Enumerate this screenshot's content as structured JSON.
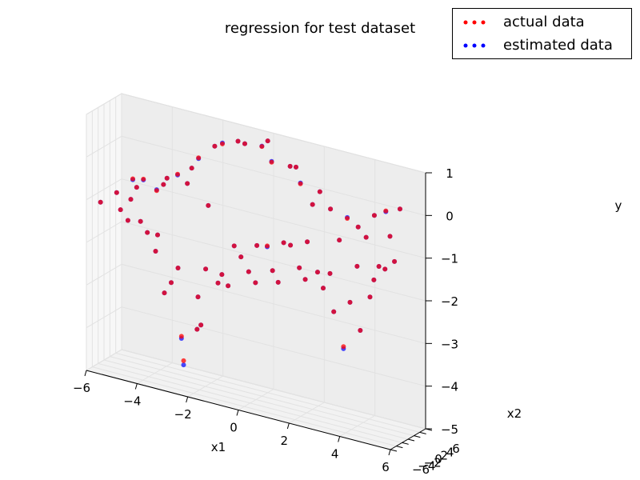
{
  "chart_data": {
    "type": "scatter",
    "projection": "3d",
    "title": "regression for test dataset",
    "xlabel": "x1",
    "ylabel": "x2",
    "zlabel": "y",
    "xlim": [
      -6,
      6
    ],
    "ylim": [
      -6,
      6
    ],
    "zlim": [
      -5,
      1
    ],
    "xticks": [
      "−6",
      "−4",
      "−2",
      "0",
      "2",
      "4",
      "6"
    ],
    "yticks": [
      "−6",
      "−4",
      "−2",
      "0",
      "2",
      "4",
      "6"
    ],
    "zticks": [
      "−5",
      "−4",
      "−3",
      "−2",
      "−1",
      "0",
      "1"
    ],
    "grid": true,
    "legend": "top-right",
    "series": [
      {
        "name": "actual data",
        "color": "#ff0000",
        "marker": "o"
      },
      {
        "name": "estimated data",
        "color": "#0000ff",
        "marker": "o"
      }
    ],
    "points": [
      {
        "x1": -5.5,
        "x2": 5.5,
        "actual": -0.9,
        "estimated": -0.92
      },
      {
        "x1": -5.0,
        "x2": 4.8,
        "actual": -0.8,
        "estimated": -0.82
      },
      {
        "x1": -4.5,
        "x2": 5.0,
        "actual": -1.0,
        "estimated": -0.98
      },
      {
        "x1": -4.0,
        "x2": 4.2,
        "actual": -0.6,
        "estimated": -0.6
      },
      {
        "x1": -3.5,
        "x2": 3.5,
        "actual": -0.4,
        "estimated": -0.42
      },
      {
        "x1": -3.0,
        "x2": 4.0,
        "actual": -0.2,
        "estimated": -0.2
      },
      {
        "x1": -2.5,
        "x2": 2.0,
        "actual": 0.2,
        "estimated": 0.18
      },
      {
        "x1": -2.0,
        "x2": 3.2,
        "actual": 0.5,
        "estimated": 0.5
      },
      {
        "x1": -1.5,
        "x2": 1.5,
        "actual": 0.7,
        "estimated": 0.72
      },
      {
        "x1": -1.0,
        "x2": 2.5,
        "actual": 0.8,
        "estimated": 0.8
      },
      {
        "x1": -0.5,
        "x2": 0.5,
        "actual": 0.9,
        "estimated": 0.9
      },
      {
        "x1": 0.0,
        "x2": 2.0,
        "actual": 0.85,
        "estimated": 0.86
      },
      {
        "x1": 0.5,
        "x2": 1.0,
        "actual": 0.6,
        "estimated": 0.62
      },
      {
        "x1": 1.0,
        "x2": 3.0,
        "actual": 0.5,
        "estimated": 0.5
      },
      {
        "x1": 1.5,
        "x2": 2.2,
        "actual": 0.2,
        "estimated": 0.22
      },
      {
        "x1": 2.0,
        "x2": 4.5,
        "actual": 0.0,
        "estimated": 0.0
      },
      {
        "x1": 2.5,
        "x2": 3.8,
        "actual": -0.3,
        "estimated": -0.3
      },
      {
        "x1": 3.0,
        "x2": 5.2,
        "actual": -0.5,
        "estimated": -0.48
      },
      {
        "x1": 3.5,
        "x2": 4.6,
        "actual": -0.6,
        "estimated": -0.6
      },
      {
        "x1": 4.0,
        "x2": 5.8,
        "actual": -0.3,
        "estimated": -0.3
      },
      {
        "x1": 4.5,
        "x2": 5.4,
        "actual": -0.1,
        "estimated": -0.12
      },
      {
        "x1": 5.0,
        "x2": 5.9,
        "actual": 0.0,
        "estimated": 0.0
      },
      {
        "x1": -5.5,
        "x2": 0.0,
        "actual": -1.0,
        "estimated": -1.0
      },
      {
        "x1": -5.0,
        "x2": 0.5,
        "actual": -1.1,
        "estimated": -1.1
      },
      {
        "x1": -4.5,
        "x2": -0.5,
        "actual": -1.5,
        "estimated": -1.5
      },
      {
        "x1": -4.0,
        "x2": 1.0,
        "actual": -1.8,
        "estimated": -1.8
      },
      {
        "x1": -3.5,
        "x2": -1.0,
        "actual": -3.0,
        "estimated": -3.0
      },
      {
        "x1": -3.0,
        "x2": 0.5,
        "actual": -4.0,
        "estimated": -4.05
      },
      {
        "x1": -2.8,
        "x2": -0.5,
        "actual": -4.5,
        "estimated": -4.6
      },
      {
        "x1": -2.5,
        "x2": 1.5,
        "actual": -3.8,
        "estimated": -3.8
      },
      {
        "x1": -2.0,
        "x2": -1.5,
        "actual": -3.5,
        "estimated": -3.5
      },
      {
        "x1": -1.5,
        "x2": 0.0,
        "actual": -2.5,
        "estimated": -2.5
      },
      {
        "x1": -1.0,
        "x2": 1.2,
        "actual": -1.6,
        "estimated": -1.6
      },
      {
        "x1": -0.5,
        "x2": -0.8,
        "actual": -1.7,
        "estimated": -1.7
      },
      {
        "x1": 0.0,
        "x2": 0.3,
        "actual": -1.4,
        "estimated": -1.4
      },
      {
        "x1": 0.5,
        "x2": -0.5,
        "actual": -1.3,
        "estimated": -1.32
      },
      {
        "x1": 1.0,
        "x2": 0.8,
        "actual": -1.2,
        "estimated": -1.2
      },
      {
        "x1": 1.5,
        "x2": -1.2,
        "actual": -1.1,
        "estimated": -1.1
      },
      {
        "x1": 2.0,
        "x2": 0.2,
        "actual": -1.0,
        "estimated": -1.0
      },
      {
        "x1": 2.5,
        "x2": -0.6,
        "actual": -1.6,
        "estimated": -1.6
      },
      {
        "x1": 3.0,
        "x2": 0.6,
        "actual": -2.5,
        "estimated": -2.5
      },
      {
        "x1": 3.5,
        "x2": -0.4,
        "actual": -3.2,
        "estimated": -3.25
      },
      {
        "x1": 4.0,
        "x2": 1.0,
        "actual": -2.8,
        "estimated": -2.8
      },
      {
        "x1": 4.5,
        "x2": 0.0,
        "actual": -1.9,
        "estimated": -1.9
      },
      {
        "x1": 5.0,
        "x2": 0.8,
        "actual": -1.2,
        "estimated": -1.2
      },
      {
        "x1": 5.5,
        "x2": -0.3,
        "actual": -0.9,
        "estimated": -0.9
      },
      {
        "x1": -5.5,
        "x2": -5.5,
        "actual": -1.0,
        "estimated": -1.0
      },
      {
        "x1": -4.5,
        "x2": -4.8,
        "actual": -1.3,
        "estimated": -1.3
      },
      {
        "x1": -3.5,
        "x2": -4.0,
        "actual": -1.9,
        "estimated": -1.9
      },
      {
        "x1": -2.5,
        "x2": -5.0,
        "actual": -2.1,
        "estimated": -2.1
      },
      {
        "x1": -1.5,
        "x2": -4.2,
        "actual": -2.0,
        "estimated": -2.0
      },
      {
        "x1": -0.5,
        "x2": -5.2,
        "actual": -2.2,
        "estimated": -2.2
      },
      {
        "x1": 0.5,
        "x2": -4.5,
        "actual": -2.0,
        "estimated": -2.0
      },
      {
        "x1": 1.5,
        "x2": -5.4,
        "actual": -1.8,
        "estimated": -1.8
      },
      {
        "x1": 2.5,
        "x2": -4.8,
        "actual": -1.6,
        "estimated": -1.6
      },
      {
        "x1": 3.5,
        "x2": -5.0,
        "actual": -1.3,
        "estimated": -1.3
      },
      {
        "x1": 4.5,
        "x2": -4.4,
        "actual": -1.0,
        "estimated": -1.0
      },
      {
        "x1": 5.5,
        "x2": -5.6,
        "actual": -0.8,
        "estimated": -0.8
      },
      {
        "x1": -5.0,
        "x2": -3.0,
        "actual": -1.2,
        "estimated": -1.2
      },
      {
        "x1": -4.0,
        "x2": -2.5,
        "actual": -1.6,
        "estimated": -1.6
      },
      {
        "x1": -3.0,
        "x2": -3.0,
        "actual": -2.6,
        "estimated": -2.6
      },
      {
        "x1": -2.0,
        "x2": -2.5,
        "actual": -2.8,
        "estimated": -2.8
      },
      {
        "x1": -1.0,
        "x2": -3.0,
        "actual": -2.1,
        "estimated": -2.1
      },
      {
        "x1": 0.0,
        "x2": -2.5,
        "actual": -1.9,
        "estimated": -1.9
      },
      {
        "x1": 1.0,
        "x2": -3.0,
        "actual": -1.7,
        "estimated": -1.7
      },
      {
        "x1": 2.0,
        "x2": -2.5,
        "actual": -1.5,
        "estimated": -1.5
      },
      {
        "x1": 3.0,
        "x2": -3.0,
        "actual": -1.8,
        "estimated": -1.8
      },
      {
        "x1": 4.0,
        "x2": -2.5,
        "actual": -2.0,
        "estimated": -2.0
      },
      {
        "x1": 5.0,
        "x2": -3.0,
        "actual": -1.3,
        "estimated": -1.3
      },
      {
        "x1": -5.0,
        "x2": 2.5,
        "actual": -0.9,
        "estimated": -0.9
      },
      {
        "x1": -4.0,
        "x2": 3.0,
        "actual": -0.7,
        "estimated": -0.7
      },
      {
        "x1": -3.0,
        "x2": 2.5,
        "actual": -0.5,
        "estimated": -0.5
      },
      {
        "x1": -2.0,
        "x2": 1.0,
        "actual": -0.8,
        "estimated": -0.8
      },
      {
        "x1": 0.0,
        "x2": 4.0,
        "actual": 0.9,
        "estimated": 0.9
      },
      {
        "x1": 1.0,
        "x2": 5.0,
        "actual": 0.4,
        "estimated": 0.4
      },
      {
        "x1": 2.0,
        "x2": 2.0,
        "actual": -0.2,
        "estimated": -0.2
      },
      {
        "x1": 3.0,
        "x2": 2.5,
        "actual": -0.9,
        "estimated": -0.9
      },
      {
        "x1": 4.0,
        "x2": 3.0,
        "actual": -0.7,
        "estimated": -0.7
      },
      {
        "x1": 5.0,
        "x2": 2.5,
        "actual": -0.5,
        "estimated": -0.5
      }
    ]
  }
}
